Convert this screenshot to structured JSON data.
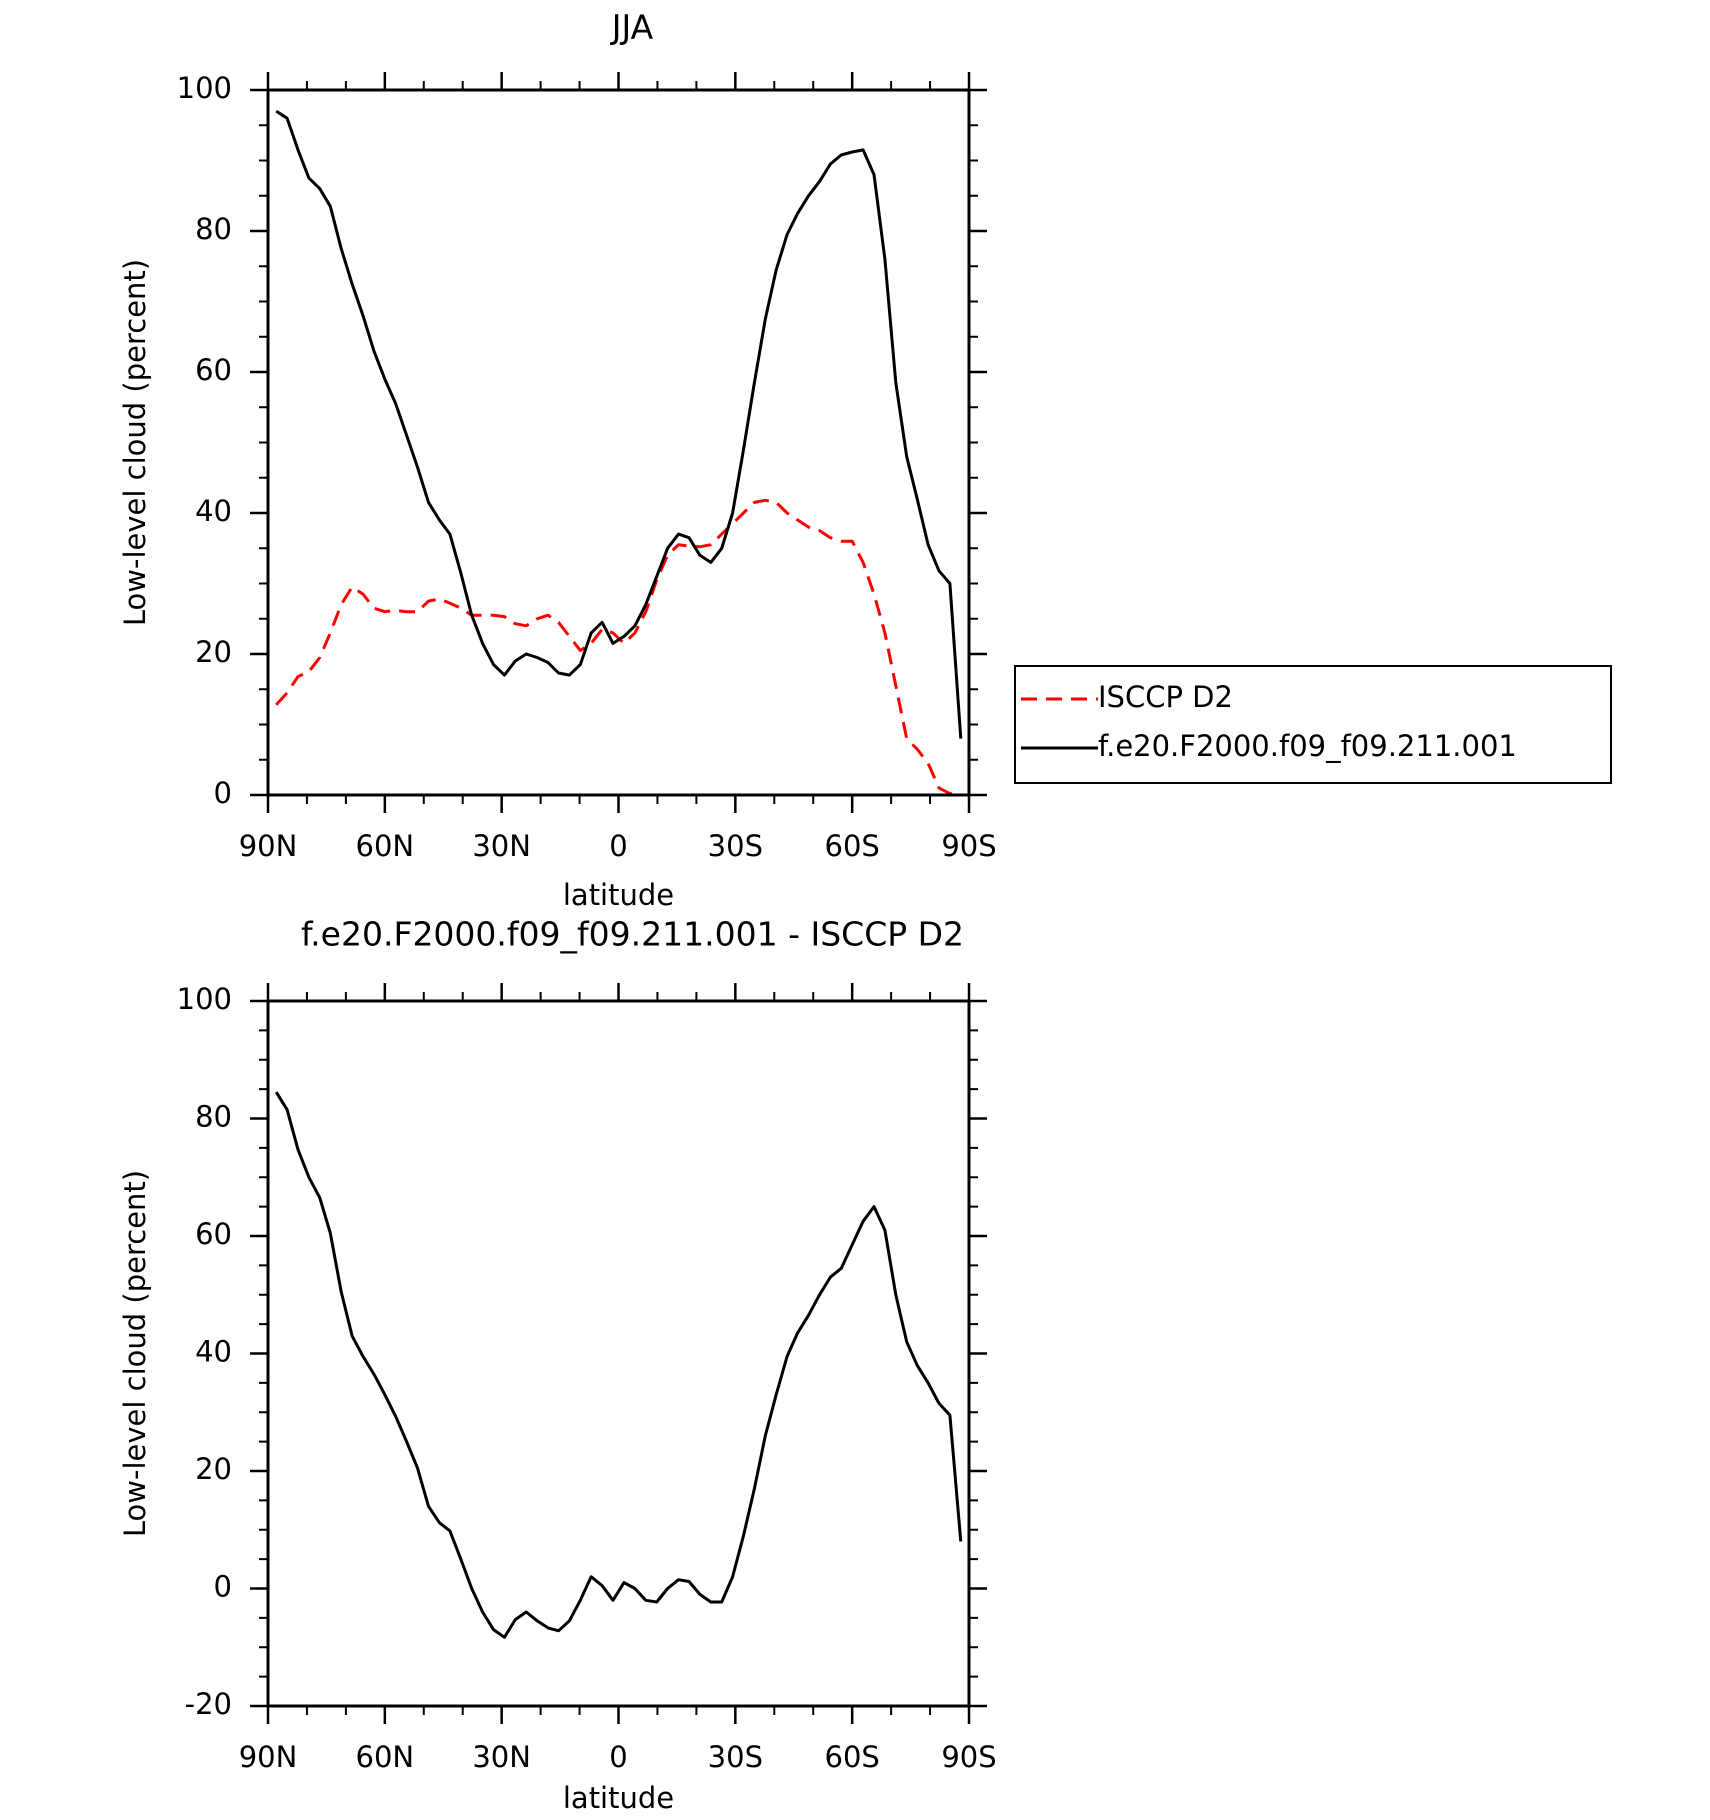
{
  "chart_data": [
    {
      "type": "line",
      "title": "JJA",
      "xlabel": "latitude",
      "ylabel": "Low-level cloud (percent)",
      "x": [
        87.9,
        85.1,
        82.3,
        79.5,
        76.7,
        74.0,
        71.2,
        68.4,
        65.6,
        62.8,
        60.0,
        57.2,
        54.4,
        51.6,
        48.8,
        46.0,
        43.3,
        40.5,
        37.7,
        34.9,
        32.1,
        29.3,
        26.5,
        23.7,
        20.9,
        18.1,
        15.4,
        12.6,
        9.8,
        7.0,
        4.2,
        1.4,
        -1.4,
        -4.2,
        -7.0,
        -9.8,
        -12.6,
        -15.4,
        -18.1,
        -20.9,
        -23.7,
        -26.5,
        -29.3,
        -32.1,
        -34.9,
        -37.7,
        -40.5,
        -43.3,
        -46.0,
        -48.8,
        -51.6,
        -54.4,
        -57.2,
        -60.0,
        -62.8,
        -65.6,
        -68.4,
        -71.2,
        -74.0,
        -76.7,
        -79.5,
        -82.3,
        -85.1,
        -87.9
      ],
      "series": [
        {
          "name": "ISCCP D2",
          "color": "#ff0000",
          "dash": true,
          "values": [
            12.8,
            14.5,
            16.8,
            17.5,
            19.5,
            23,
            27,
            29.5,
            28.5,
            26.5,
            26,
            26.2,
            26,
            26,
            27.5,
            27.8,
            27.2,
            26.5,
            25.5,
            25.5,
            25.5,
            25.3,
            24.3,
            24,
            25,
            25.5,
            24.5,
            22.5,
            20.5,
            21.5,
            23.5,
            23,
            21.5,
            23,
            26,
            30.5,
            34,
            35.5,
            35.3,
            35.2,
            35.5,
            37,
            38.5,
            40,
            41.5,
            41.8,
            41.5,
            40,
            39,
            38,
            37.5,
            36.5,
            36,
            36,
            33,
            28.5,
            23,
            15.5,
            8,
            6.5,
            4.5,
            1,
            0.2,
            0.1
          ]
        },
        {
          "name": "f.e20.F2000.f09_f09.211.001",
          "color": "#000000",
          "dash": false,
          "values": [
            97,
            96,
            91.5,
            87.5,
            86,
            83.5,
            77.5,
            72.5,
            68,
            63,
            59,
            55.5,
            51,
            46.5,
            41.5,
            39,
            37,
            31.5,
            25.5,
            21.5,
            18.5,
            17,
            19,
            20,
            19.5,
            18.8,
            17.3,
            17,
            18.5,
            23,
            24.5,
            21.5,
            22.5,
            24,
            27,
            31,
            35,
            37,
            36.5,
            34,
            33,
            35,
            40,
            49,
            58.5,
            67.5,
            74.5,
            79.5,
            82.5,
            85,
            87,
            89.5,
            90.8,
            91.2,
            91.5,
            88,
            76,
            58.5,
            48,
            42,
            35.5,
            31.8,
            30,
            8
          ]
        }
      ],
      "xlim": [
        90,
        -90
      ],
      "xticks": [
        {
          "value": 90,
          "label": "90N"
        },
        {
          "value": 60,
          "label": "60N"
        },
        {
          "value": 30,
          "label": "30N"
        },
        0,
        {
          "value": -30,
          "label": "30S"
        },
        {
          "value": -60,
          "label": "60S"
        },
        {
          "value": -90,
          "label": "90S"
        }
      ],
      "xminorticks": [
        80,
        70,
        50,
        40,
        20,
        10,
        -10,
        -20,
        -40,
        -50,
        -70,
        -80
      ],
      "ylim": [
        0,
        100
      ],
      "yticks": [
        0,
        20,
        40,
        60,
        80,
        100
      ],
      "yminorticks": [
        5,
        10,
        15,
        25,
        30,
        35,
        45,
        50,
        55,
        65,
        70,
        75,
        85,
        90,
        95
      ],
      "legend": "right"
    },
    {
      "type": "line",
      "title": "f.e20.F2000.f09_f09.211.001 - ISCCP D2",
      "xlabel": "latitude",
      "ylabel": "Low-level cloud (percent)",
      "x": [
        87.9,
        85.1,
        82.3,
        79.5,
        76.7,
        74.0,
        71.2,
        68.4,
        65.6,
        62.8,
        60.0,
        57.2,
        54.4,
        51.6,
        48.8,
        46.0,
        43.3,
        40.5,
        37.7,
        34.9,
        32.1,
        29.3,
        26.5,
        23.7,
        20.9,
        18.1,
        15.4,
        12.6,
        9.8,
        7.0,
        4.2,
        1.4,
        -1.4,
        -4.2,
        -7.0,
        -9.8,
        -12.6,
        -15.4,
        -18.1,
        -20.9,
        -23.7,
        -26.5,
        -29.3,
        -32.1,
        -34.9,
        -37.7,
        -40.5,
        -43.3,
        -46.0,
        -48.8,
        -51.6,
        -54.4,
        -57.2,
        -60.0,
        -62.8,
        -65.6,
        -68.4,
        -71.2,
        -74.0,
        -76.7,
        -79.5,
        -82.3,
        -85.1,
        -87.9
      ],
      "series": [
        {
          "color": "#000000",
          "dash": false,
          "values": [
            84.5,
            81.5,
            74.7,
            70,
            66.5,
            60.5,
            50.5,
            43,
            39.5,
            36.5,
            33,
            29.3,
            25,
            20.5,
            14,
            11.2,
            9.8,
            5,
            0,
            -4,
            -7,
            -8.3,
            -5.3,
            -4,
            -5.5,
            -6.7,
            -7.2,
            -5.5,
            -2,
            2,
            0.5,
            -2,
            1,
            0,
            -2,
            -2.3,
            0,
            1.5,
            1.2,
            -1,
            -2.3,
            -2.3,
            2,
            9,
            17,
            26,
            33,
            39.5,
            43.5,
            46.5,
            50,
            53,
            54.5,
            58.5,
            62.5,
            65,
            61,
            50,
            42,
            38,
            35,
            31.5,
            29.5,
            8
          ]
        }
      ],
      "xlim": [
        90,
        -90
      ],
      "xticks": [
        {
          "value": 90,
          "label": "90N"
        },
        {
          "value": 60,
          "label": "60N"
        },
        {
          "value": 30,
          "label": "30N"
        },
        0,
        {
          "value": -30,
          "label": "30S"
        },
        {
          "value": -60,
          "label": "60S"
        },
        {
          "value": -90,
          "label": "90S"
        }
      ],
      "xminorticks": [
        80,
        70,
        50,
        40,
        20,
        10,
        -10,
        -20,
        -40,
        -50,
        -70,
        -80
      ],
      "ylim": [
        -20,
        100
      ],
      "yticks": [
        -20,
        0,
        20,
        40,
        60,
        80,
        100
      ],
      "yminorticks": [
        -15,
        -10,
        -5,
        5,
        10,
        15,
        25,
        30,
        35,
        45,
        50,
        55,
        65,
        70,
        75,
        85,
        90,
        95
      ]
    }
  ]
}
